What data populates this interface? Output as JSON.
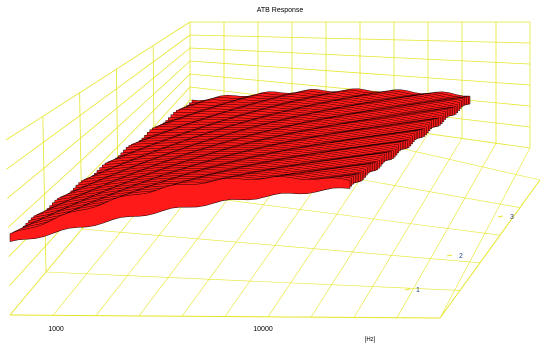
{
  "chart_data": {
    "type": "surface",
    "title": "ATB Response",
    "x_axis": {
      "label": "[Hz]",
      "scale": "log",
      "tick_labels": [
        "1000",
        "10000"
      ]
    },
    "y_axis": {
      "label": "",
      "tick_labels": [
        "1",
        "2",
        "3"
      ]
    },
    "z_axis": {
      "label": ""
    },
    "grid": true,
    "colors": {
      "surface": "#ff1a1a",
      "edge": "#1a0000",
      "grid": "#e6e62e",
      "text": "#1f3f7f"
    }
  }
}
